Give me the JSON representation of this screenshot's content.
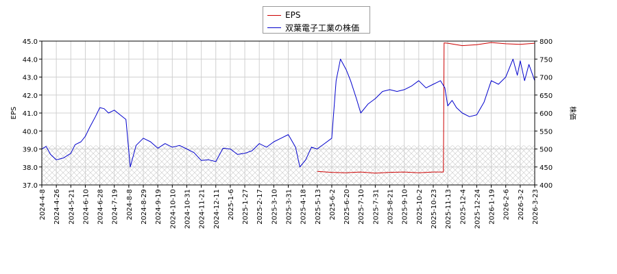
{
  "chart_data": {
    "type": "line",
    "title": "",
    "ylabel_left": "EPS",
    "ylabel_right": "株価",
    "ylim_left": [
      37.0,
      45.0
    ],
    "ylim_right": [
      400,
      800
    ],
    "left_ticks": [
      "37.0",
      "38.0",
      "39.0",
      "40.0",
      "41.0",
      "42.0",
      "43.0",
      "44.0",
      "45.0"
    ],
    "right_ticks": [
      "400",
      "450",
      "500",
      "550",
      "600",
      "650",
      "700",
      "750",
      "800"
    ],
    "x_tick_labels": [
      "2024-4-8",
      "2024-4-26",
      "2024-5-21",
      "2024-6-10",
      "2024-6-28",
      "2024-7-19",
      "2024-8-8",
      "2024-8-29",
      "2024-9-19",
      "2024-10-10",
      "2024-10-31",
      "2024-11-21",
      "2024-12-11",
      "2025-1-6",
      "2025-1-27",
      "2025-2-17",
      "2025-3-10",
      "2025-3-31",
      "2025-4-18",
      "2025-5-13",
      "2025-6-2",
      "2025-6-20",
      "2025-7-10",
      "2025-7-31",
      "2025-8-21",
      "2025-9-10",
      "2025-10-2",
      "2025-10-23",
      "2025-11-13",
      "2025-12-4",
      "2025-12-24",
      "2026-1-19",
      "2026-2-6",
      "2026-3-2",
      "2026-3-23"
    ],
    "grid": true,
    "legend_position": "top-center",
    "shaded_band_right_axis": [
      400,
      510
    ],
    "series": [
      {
        "name": "EPS",
        "color": "#cc0000",
        "axis": "left",
        "start_tick_index": 19,
        "points": [
          [
            19,
            37.75
          ],
          [
            20,
            37.7
          ],
          [
            21,
            37.68
          ],
          [
            22,
            37.72
          ],
          [
            23,
            37.66
          ],
          [
            24,
            37.7
          ],
          [
            25,
            37.72
          ],
          [
            26,
            37.68
          ],
          [
            27,
            37.72
          ],
          [
            27.7,
            37.72
          ],
          [
            27.75,
            44.9
          ],
          [
            28,
            44.88
          ],
          [
            29,
            44.75
          ],
          [
            30,
            44.8
          ],
          [
            31,
            44.92
          ],
          [
            32,
            44.85
          ],
          [
            33,
            44.82
          ],
          [
            34,
            44.88
          ],
          [
            34.4,
            44.95
          ]
        ]
      },
      {
        "name": "双葉電子工業の株価",
        "color": "#0000cc",
        "axis": "right",
        "points": [
          [
            0,
            500
          ],
          [
            0.3,
            507
          ],
          [
            0.6,
            485
          ],
          [
            1,
            470
          ],
          [
            1.5,
            475
          ],
          [
            2,
            488
          ],
          [
            2.3,
            512
          ],
          [
            2.7,
            520
          ],
          [
            3,
            535
          ],
          [
            3.3,
            560
          ],
          [
            3.7,
            590
          ],
          [
            4,
            615
          ],
          [
            4.3,
            612
          ],
          [
            4.6,
            600
          ],
          [
            5,
            608
          ],
          [
            5.4,
            595
          ],
          [
            5.8,
            582
          ],
          [
            6.1,
            450
          ],
          [
            6.5,
            510
          ],
          [
            7,
            530
          ],
          [
            7.5,
            520
          ],
          [
            8,
            502
          ],
          [
            8.5,
            515
          ],
          [
            9,
            505
          ],
          [
            9.5,
            510
          ],
          [
            10,
            500
          ],
          [
            10.5,
            490
          ],
          [
            11,
            468
          ],
          [
            11.5,
            470
          ],
          [
            12,
            465
          ],
          [
            12.5,
            502
          ],
          [
            13,
            500
          ],
          [
            13.5,
            485
          ],
          [
            14,
            488
          ],
          [
            14.5,
            495
          ],
          [
            15,
            515
          ],
          [
            15.5,
            505
          ],
          [
            16,
            520
          ],
          [
            16.5,
            530
          ],
          [
            17,
            540
          ],
          [
            17.5,
            505
          ],
          [
            17.8,
            450
          ],
          [
            18.2,
            470
          ],
          [
            18.6,
            505
          ],
          [
            19,
            500
          ],
          [
            19.5,
            515
          ],
          [
            20,
            530
          ],
          [
            20.3,
            690
          ],
          [
            20.6,
            750
          ],
          [
            21,
            720
          ],
          [
            21.3,
            690
          ],
          [
            21.7,
            640
          ],
          [
            22,
            600
          ],
          [
            22.5,
            625
          ],
          [
            23,
            640
          ],
          [
            23.5,
            660
          ],
          [
            24,
            665
          ],
          [
            24.5,
            660
          ],
          [
            25,
            665
          ],
          [
            25.5,
            675
          ],
          [
            26,
            690
          ],
          [
            26.5,
            670
          ],
          [
            27,
            680
          ],
          [
            27.5,
            690
          ],
          [
            27.8,
            670
          ],
          [
            28,
            620
          ],
          [
            28.3,
            635
          ],
          [
            28.6,
            615
          ],
          [
            29,
            600
          ],
          [
            29.5,
            590
          ],
          [
            30,
            595
          ],
          [
            30.5,
            630
          ],
          [
            31,
            690
          ],
          [
            31.5,
            680
          ],
          [
            32,
            700
          ],
          [
            32.5,
            750
          ],
          [
            32.8,
            705
          ],
          [
            33,
            745
          ],
          [
            33.3,
            690
          ],
          [
            33.6,
            735
          ],
          [
            34,
            690
          ],
          [
            34.2,
            648
          ],
          [
            34.4,
            680
          ],
          [
            34.6,
            660
          ]
        ]
      }
    ]
  }
}
